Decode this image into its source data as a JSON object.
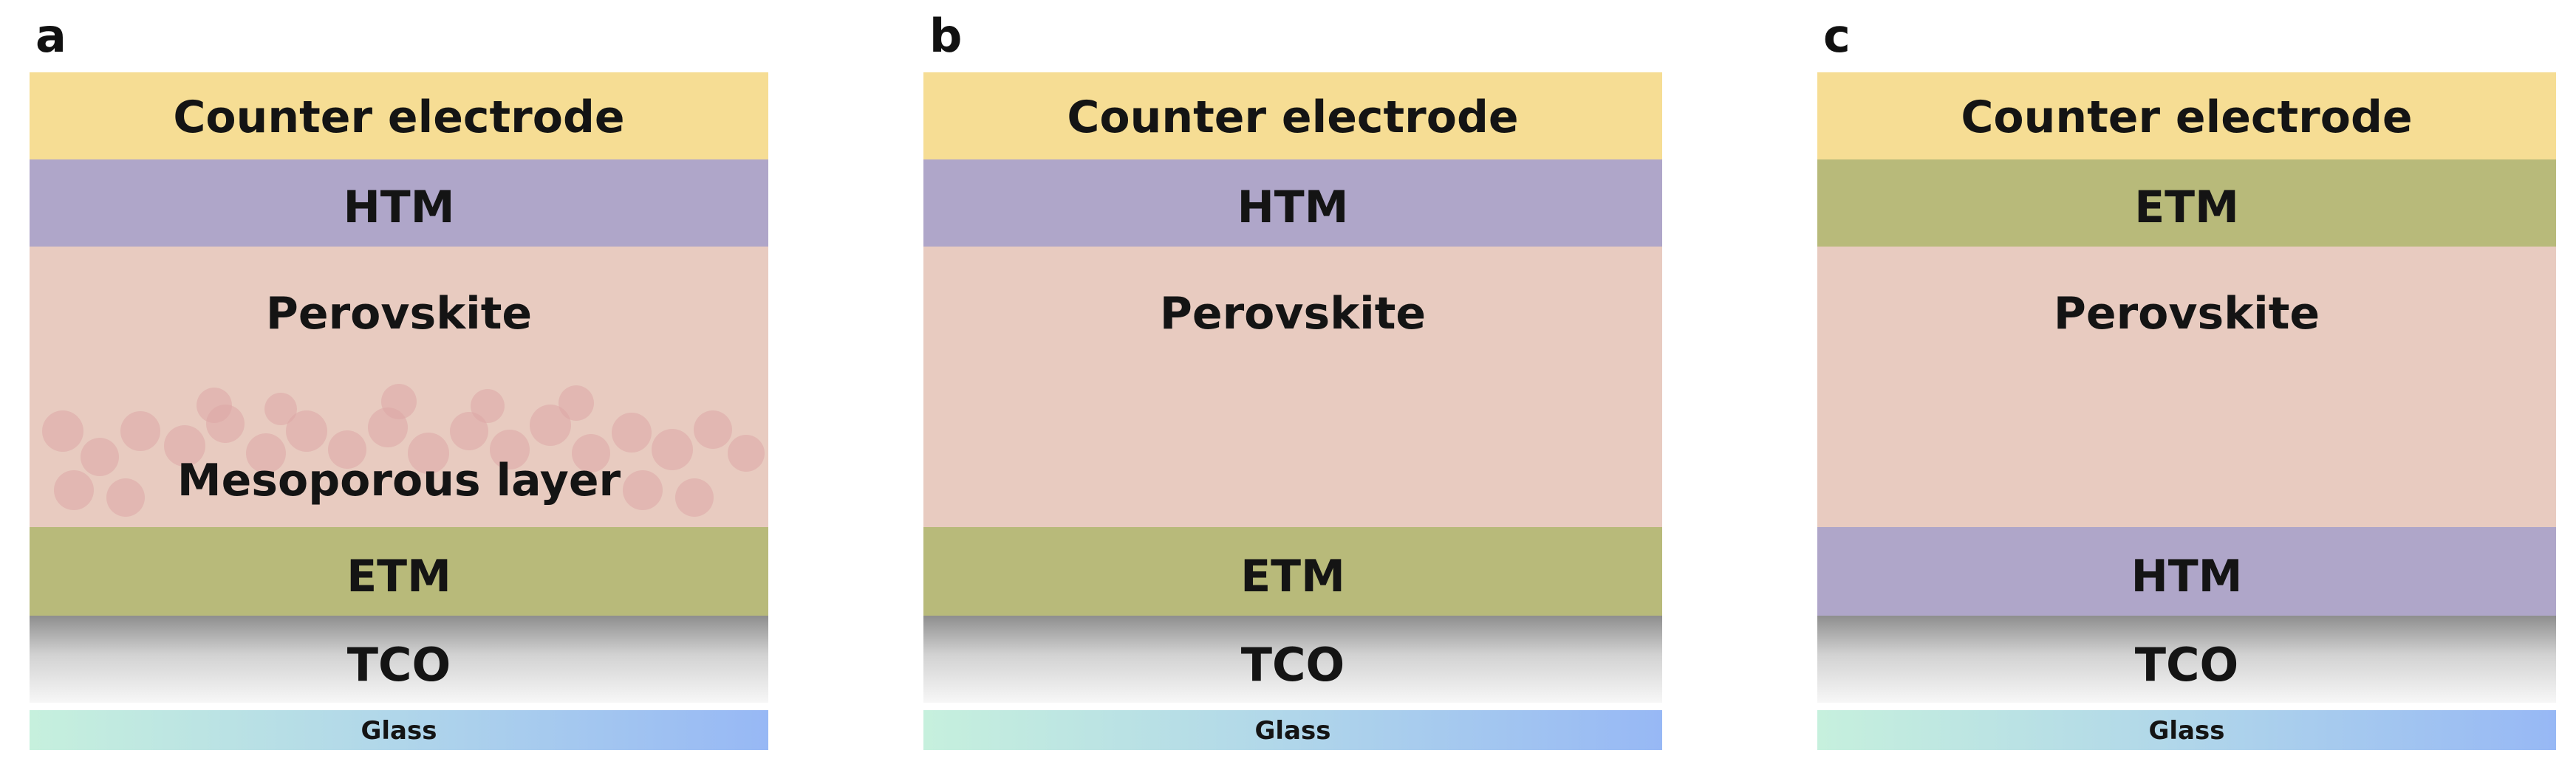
{
  "colors": {
    "counter_electrode": "#f6dd94",
    "htm": "#afa6c9",
    "etm": "#b8ba7a",
    "perovskite": "#e8cbc0",
    "mesoporous_particles": "#dca7a6",
    "tco_top": "#8e8e8e",
    "tco_bottom": "#f7f7f7",
    "glass_left": "#c6f0dd",
    "glass_right": "#97b8f5"
  },
  "panels": [
    {
      "letter": "a",
      "counter_electrode": "Counter electrode",
      "top_transport": "HTM",
      "perovskite": "Perovskite",
      "mesoporous": "Mesoporous layer",
      "bottom_transport": "ETM",
      "tco": "TCO",
      "glass": "Glass"
    },
    {
      "letter": "b",
      "counter_electrode": "Counter electrode",
      "top_transport": "HTM",
      "perovskite": "Perovskite",
      "bottom_transport": "ETM",
      "tco": "TCO",
      "glass": "Glass"
    },
    {
      "letter": "c",
      "counter_electrode": "Counter electrode",
      "top_transport": "ETM",
      "perovskite": "Perovskite",
      "bottom_transport": "HTM",
      "tco": "TCO",
      "glass": "Glass"
    }
  ]
}
